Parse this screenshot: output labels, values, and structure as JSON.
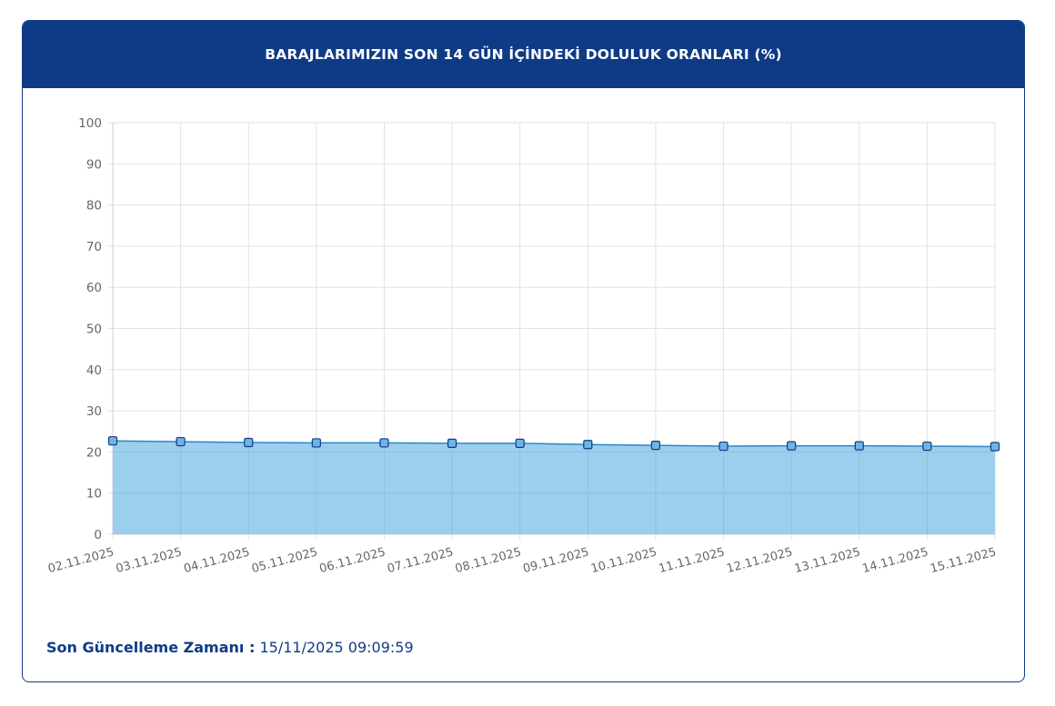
{
  "header": {
    "title": "BARAJLARIMIZIN SON 14 GÜN İÇİNDEKİ DOLULUK ORANLARI (%)"
  },
  "footer": {
    "label": "Son Güncelleme Zamanı :",
    "value": "15/11/2025 09:09:59"
  },
  "colors": {
    "header_bg": "#0f3b86",
    "area_fill": "#9ccfed",
    "line": "#2a86c8",
    "marker_fill": "#6fb4e3",
    "marker_stroke": "#0f3b86"
  },
  "chart_data": {
    "type": "area",
    "title": "",
    "xlabel": "",
    "ylabel": "",
    "ylim": [
      0,
      100
    ],
    "yticks": [
      0,
      10,
      20,
      30,
      40,
      50,
      60,
      70,
      80,
      90,
      100
    ],
    "grid": true,
    "categories": [
      "02.11.2025",
      "03.11.2025",
      "04.11.2025",
      "05.11.2025",
      "06.11.2025",
      "07.11.2025",
      "08.11.2025",
      "09.11.2025",
      "10.11.2025",
      "11.11.2025",
      "12.11.2025",
      "13.11.2025",
      "14.11.2025",
      "15.11.2025"
    ],
    "series": [
      {
        "name": "",
        "values": [
          22.7,
          22.5,
          22.3,
          22.2,
          22.2,
          22.1,
          22.1,
          21.8,
          21.6,
          21.4,
          21.5,
          21.5,
          21.4,
          21.3
        ]
      }
    ]
  }
}
